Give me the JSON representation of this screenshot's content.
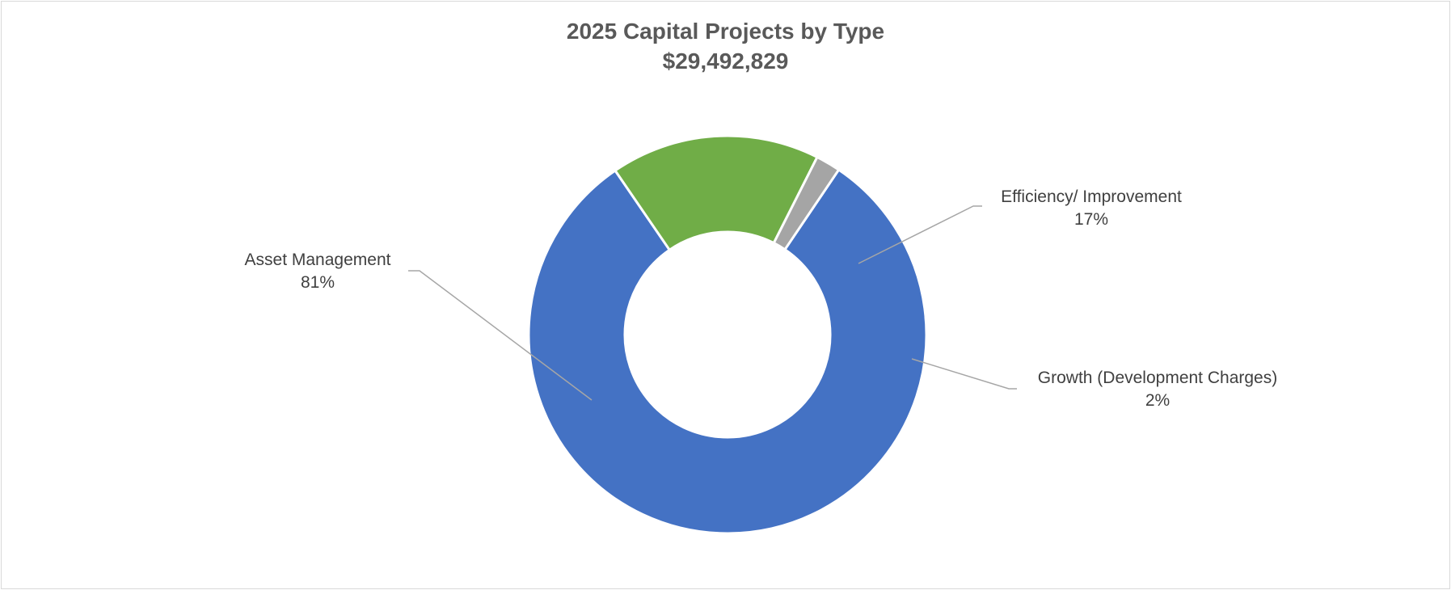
{
  "chart_data": {
    "type": "donut",
    "title": "2025 Capital Projects by Type",
    "subtitle": "$29,492,829",
    "series": [
      {
        "name": "Asset Management",
        "value": 81,
        "label": "81%",
        "color": "#4472C4"
      },
      {
        "name": "Efficiency/ Improvement",
        "value": 17,
        "label": "17%",
        "color": "#70AD47"
      },
      {
        "name": "Growth (Development Charges)",
        "value": 2,
        "label": "2%",
        "color": "#A5A5A5"
      }
    ],
    "legend": "none",
    "data_labels": "outside-with-leader-lines"
  }
}
